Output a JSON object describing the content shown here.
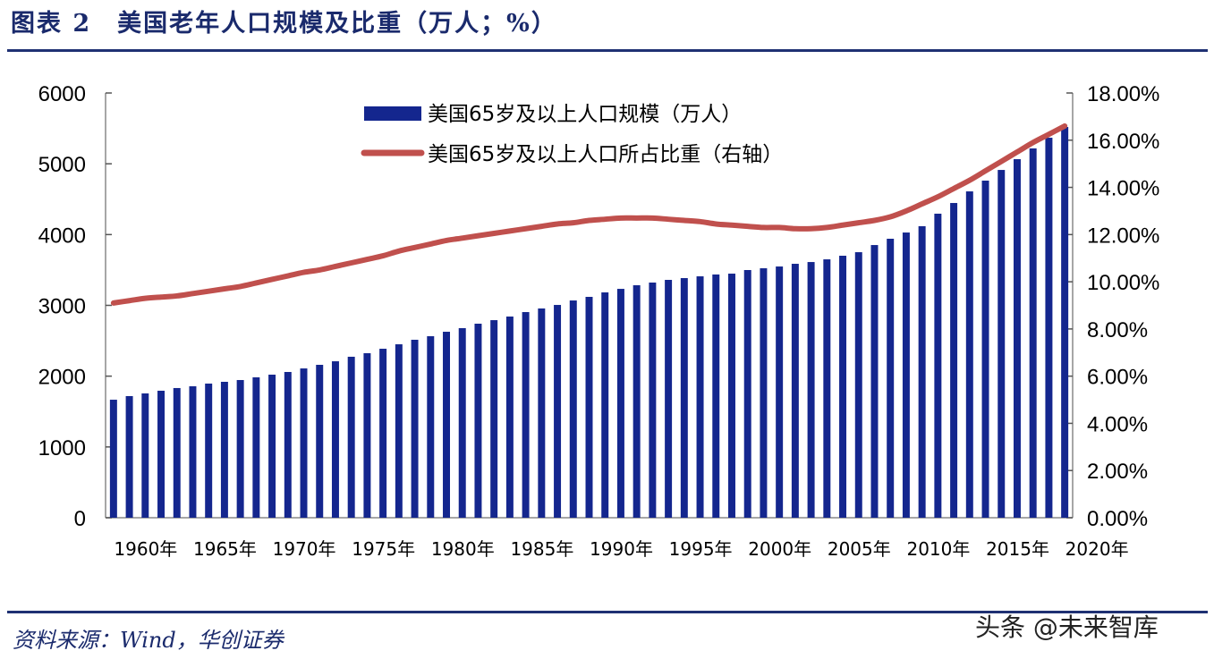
{
  "header": {
    "title": "图表 2　美国老年人口规模及比重（万人；%）"
  },
  "footer": {
    "source": "资料来源：Wind，华创证券",
    "watermark": "头条 @未来智库"
  },
  "colors": {
    "bar": "#14268e",
    "line": "#c0504d",
    "rule": "#1f3173"
  },
  "chart_data": {
    "type": "bar+line",
    "title": "",
    "legend_position": "top-center",
    "grid": false,
    "x": [
      1960,
      1961,
      1962,
      1963,
      1964,
      1965,
      1966,
      1967,
      1968,
      1969,
      1970,
      1971,
      1972,
      1973,
      1974,
      1975,
      1976,
      1977,
      1978,
      1979,
      1980,
      1981,
      1982,
      1983,
      1984,
      1985,
      1986,
      1987,
      1988,
      1989,
      1990,
      1991,
      1992,
      1993,
      1994,
      1995,
      1996,
      1997,
      1998,
      1999,
      2000,
      2001,
      2002,
      2003,
      2004,
      2005,
      2006,
      2007,
      2008,
      2009,
      2010,
      2011,
      2012,
      2013,
      2014,
      2015,
      2016,
      2017,
      2018,
      2019,
      2020
    ],
    "x_tick_labels": [
      "1960年",
      "1965年",
      "1970年",
      "1975年",
      "1980年",
      "1985年",
      "1990年",
      "1995年",
      "2000年",
      "2005年",
      "2010年",
      "2015年",
      "2020年"
    ],
    "y_left": {
      "range": [
        0,
        6000
      ],
      "ticks": [
        "0",
        "1000",
        "2000",
        "3000",
        "4000",
        "5000",
        "6000"
      ]
    },
    "y_right": {
      "range": [
        0,
        18
      ],
      "ticks": [
        "0.00%",
        "2.00%",
        "4.00%",
        "6.00%",
        "8.00%",
        "10.00%",
        "12.00%",
        "14.00%",
        "16.00%",
        "18.00%"
      ]
    },
    "series": [
      {
        "name": "美国65岁及以上人口规模（万人）",
        "type": "bar",
        "axis": "left",
        "values": [
          1667,
          1718,
          1756,
          1794,
          1832,
          1857,
          1895,
          1920,
          1945,
          1983,
          2021,
          2059,
          2109,
          2160,
          2210,
          2274,
          2324,
          2387,
          2450,
          2514,
          2564,
          2627,
          2678,
          2741,
          2791,
          2842,
          2905,
          2956,
          3006,
          3069,
          3120,
          3183,
          3233,
          3284,
          3322,
          3360,
          3385,
          3410,
          3436,
          3448,
          3499,
          3524,
          3549,
          3587,
          3612,
          3650,
          3701,
          3751,
          3852,
          3941,
          4029,
          4118,
          4295,
          4446,
          4610,
          4762,
          4913,
          5065,
          5217,
          5368,
          5520
        ]
      },
      {
        "name": "美国65岁及以上人口所占比重（右轴）",
        "type": "line",
        "axis": "right",
        "values": [
          9.1,
          9.2,
          9.3,
          9.35,
          9.4,
          9.5,
          9.6,
          9.7,
          9.8,
          9.95,
          10.1,
          10.25,
          10.4,
          10.5,
          10.65,
          10.8,
          10.95,
          11.1,
          11.3,
          11.45,
          11.6,
          11.75,
          11.85,
          11.95,
          12.05,
          12.15,
          12.25,
          12.35,
          12.45,
          12.5,
          12.6,
          12.65,
          12.7,
          12.7,
          12.7,
          12.65,
          12.6,
          12.55,
          12.45,
          12.4,
          12.35,
          12.3,
          12.3,
          12.25,
          12.25,
          12.3,
          12.4,
          12.5,
          12.6,
          12.75,
          13.0,
          13.3,
          13.6,
          13.95,
          14.3,
          14.7,
          15.1,
          15.5,
          15.9,
          16.25,
          16.6
        ]
      }
    ]
  }
}
